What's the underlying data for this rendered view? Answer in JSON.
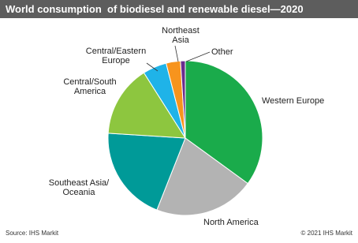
{
  "chart_data": {
    "type": "pie",
    "title": "World consumption  of biodiesel and renewable diesel—2020",
    "categories": [
      "Western Europe",
      "North America",
      "Southeast Asia/\nOceania",
      "Central/South\nAmerica",
      "Central/Eastern\nEurope",
      "Northeast\nAsia",
      "Other"
    ],
    "values": [
      35,
      21,
      20,
      15,
      5,
      3,
      1
    ],
    "colors": [
      "#1aab4b",
      "#b3b3b3",
      "#009a98",
      "#8dc63f",
      "#1fb3e8",
      "#f7941d",
      "#6a2c8e"
    ],
    "source": "Source: IHS Markit",
    "copyright": "© 2021 IHS Markit"
  }
}
